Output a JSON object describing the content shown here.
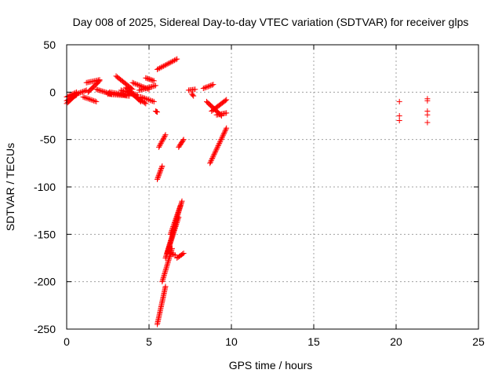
{
  "chart_data": {
    "type": "scatter",
    "title": "Day 008 of 2025, Sidereal Day-to-day VTEC variation (SDTVAR) for receiver glps",
    "xlabel": "GPS time / hours",
    "ylabel": "SDTVAR / TECUs",
    "xlim": [
      0,
      25
    ],
    "ylim": [
      -250,
      50
    ],
    "xticks": [
      0,
      5,
      10,
      15,
      20,
      25
    ],
    "yticks": [
      -250,
      -200,
      -150,
      -100,
      -50,
      0,
      50
    ],
    "xtick_labels": [
      "0",
      "5",
      "10",
      "15",
      "20",
      "25"
    ],
    "ytick_labels": [
      "-250",
      "-200",
      "-150",
      "-100",
      "-50",
      "0",
      "50"
    ],
    "grid": true,
    "marker": "plus",
    "color": "#ff0000",
    "segments": [
      {
        "x": [
          0.0,
          0.6
        ],
        "y": [
          -12,
          -2
        ]
      },
      {
        "x": [
          0.0,
          0.6
        ],
        "y": [
          -5,
          0
        ]
      },
      {
        "x": [
          0.0,
          0.6
        ],
        "y": [
          -9,
          -3
        ]
      },
      {
        "x": [
          0.6,
          1.2
        ],
        "y": [
          -2,
          2
        ]
      },
      {
        "x": [
          1.0,
          1.8
        ],
        "y": [
          -5,
          -10
        ]
      },
      {
        "x": [
          1.2,
          2.0
        ],
        "y": [
          10,
          13
        ]
      },
      {
        "x": [
          1.3,
          2.0
        ],
        "y": [
          0,
          12
        ]
      },
      {
        "x": [
          1.8,
          2.7
        ],
        "y": [
          3,
          -2
        ]
      },
      {
        "x": [
          2.5,
          3.8
        ],
        "y": [
          -2,
          -4
        ]
      },
      {
        "x": [
          2.6,
          3.6
        ],
        "y": [
          0,
          -3
        ]
      },
      {
        "x": [
          3.0,
          4.0
        ],
        "y": [
          17,
          3
        ]
      },
      {
        "x": [
          3.3,
          4.3
        ],
        "y": [
          2,
          -3
        ]
      },
      {
        "x": [
          3.6,
          4.5
        ],
        "y": [
          5,
          -10
        ]
      },
      {
        "x": [
          3.8,
          4.8
        ],
        "y": [
          0,
          -12
        ]
      },
      {
        "x": [
          4.0,
          5.0
        ],
        "y": [
          10,
          3
        ]
      },
      {
        "x": [
          4.5,
          5.3
        ],
        "y": [
          -5,
          -10
        ]
      },
      {
        "x": [
          4.4,
          5.4
        ],
        "y": [
          2,
          7
        ]
      },
      {
        "x": [
          4.8,
          5.3
        ],
        "y": [
          15,
          12
        ]
      },
      {
        "x": [
          5.4,
          5.5
        ],
        "y": [
          -20,
          -21
        ]
      },
      {
        "x": [
          5.5,
          6.7
        ],
        "y": [
          24,
          35
        ]
      },
      {
        "x": [
          5.6,
          6.0
        ],
        "y": [
          -58,
          -45
        ]
      },
      {
        "x": [
          5.5,
          5.8
        ],
        "y": [
          -92,
          -78
        ]
      },
      {
        "x": [
          5.5,
          6.0
        ],
        "y": [
          -245,
          -205
        ]
      },
      {
        "x": [
          5.8,
          6.4
        ],
        "y": [
          -200,
          -165
        ]
      },
      {
        "x": [
          6.0,
          6.6
        ],
        "y": [
          -175,
          -140
        ]
      },
      {
        "x": [
          6.1,
          6.8
        ],
        "y": [
          -170,
          -132
        ]
      },
      {
        "x": [
          6.3,
          6.9
        ],
        "y": [
          -150,
          -120
        ]
      },
      {
        "x": [
          6.6,
          7.0
        ],
        "y": [
          -138,
          -115
        ]
      },
      {
        "x": [
          6.3,
          6.6
        ],
        "y": [
          -170,
          -172
        ]
      },
      {
        "x": [
          6.7,
          7.1
        ],
        "y": [
          -175,
          -170
        ]
      },
      {
        "x": [
          6.8,
          7.1
        ],
        "y": [
          -58,
          -50
        ]
      },
      {
        "x": [
          7.4,
          7.8
        ],
        "y": [
          2,
          3
        ]
      },
      {
        "x": [
          7.6,
          7.7
        ],
        "y": [
          -2,
          -4
        ]
      },
      {
        "x": [
          8.3,
          8.9
        ],
        "y": [
          4,
          8
        ]
      },
      {
        "x": [
          8.5,
          9.4
        ],
        "y": [
          -10,
          -25
        ]
      },
      {
        "x": [
          8.8,
          9.7
        ],
        "y": [
          -20,
          -8
        ]
      },
      {
        "x": [
          9.1,
          9.7
        ],
        "y": [
          -24,
          -22
        ]
      },
      {
        "x": [
          8.7,
          9.7
        ],
        "y": [
          -75,
          -38
        ]
      }
    ],
    "points": [
      {
        "x": 20.2,
        "y": -10
      },
      {
        "x": 20.2,
        "y": -25
      },
      {
        "x": 20.2,
        "y": -30
      },
      {
        "x": 21.9,
        "y": -7
      },
      {
        "x": 21.9,
        "y": -9
      },
      {
        "x": 21.9,
        "y": -20
      },
      {
        "x": 21.9,
        "y": -24
      },
      {
        "x": 21.9,
        "y": -32
      }
    ]
  }
}
